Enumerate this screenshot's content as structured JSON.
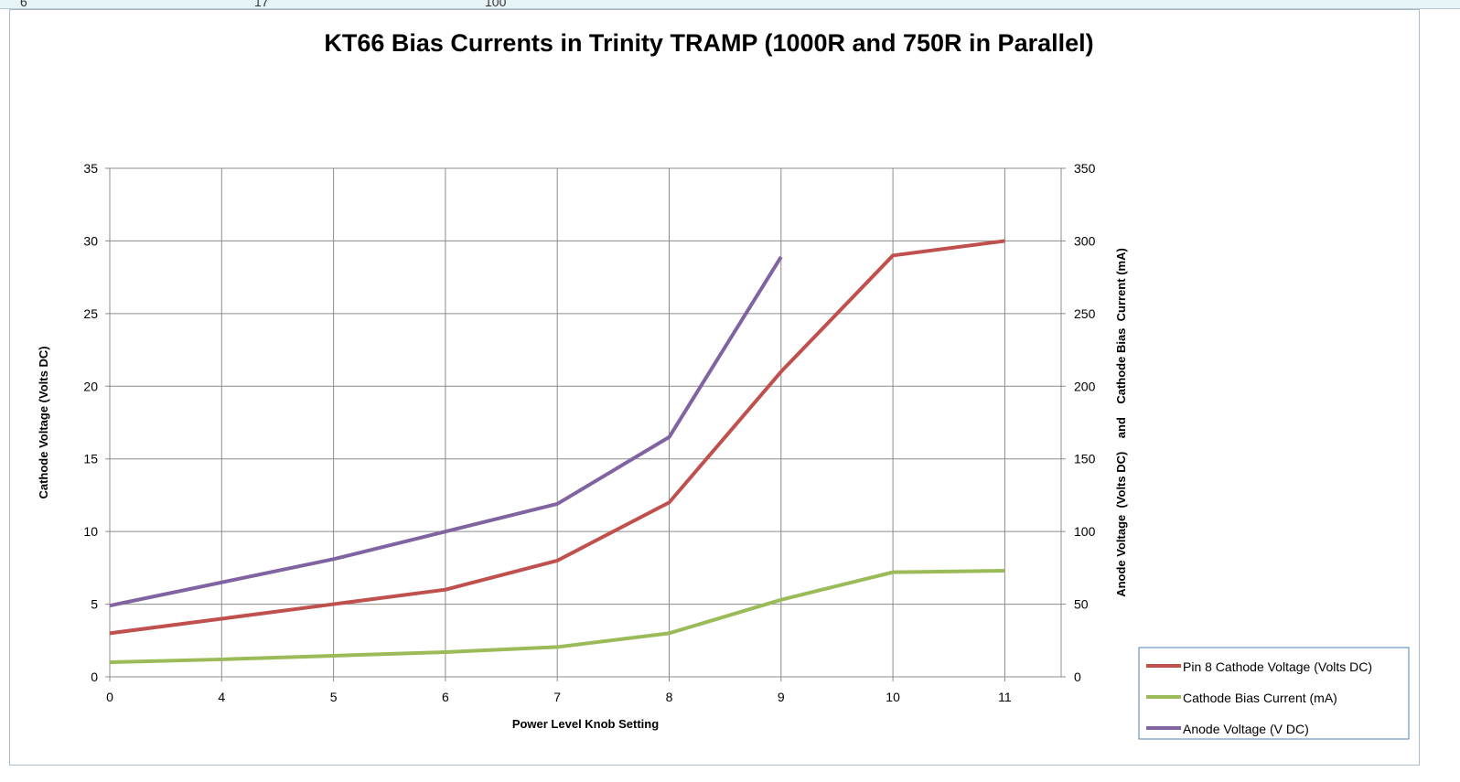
{
  "sheet": {
    "visible_cells": [
      "6",
      "17",
      "100"
    ]
  },
  "chart_data": {
    "type": "line",
    "title": "KT66 Bias Currents in Trinity TRAMP (1000R and 750R in Parallel)",
    "xlabel": "Power Level Knob Setting",
    "ylabel": "Cathode Voltage  (Volts DC)",
    "y2label": "Anode Voltage  (Volts DC)    and    Cathode Bias  Current (mA)",
    "categories": [
      "0",
      "4",
      "5",
      "6",
      "7",
      "8",
      "9",
      "10",
      "11"
    ],
    "ylim": [
      0,
      35
    ],
    "yticks": [
      "0",
      "5",
      "10",
      "15",
      "20",
      "25",
      "30",
      "35"
    ],
    "y2lim": [
      0,
      350
    ],
    "y2ticks": [
      "0",
      "50",
      "100",
      "150",
      "200",
      "250",
      "300",
      "350"
    ],
    "grid": true,
    "legend_position": "bottom-right",
    "series": [
      {
        "name": "Pin 8 Cathode Voltage  (Volts DC)",
        "axis": "left",
        "color": "#c0504d",
        "values": [
          3,
          4,
          5,
          6,
          8,
          12,
          21,
          29,
          30
        ]
      },
      {
        "name": "Cathode Bias Current (mA)",
        "axis": "right",
        "color": "#9bbb59",
        "values": [
          10,
          12,
          14.5,
          17,
          20.5,
          30,
          53,
          72,
          73
        ]
      },
      {
        "name": "Anode Voltage  (V DC)",
        "axis": "right",
        "color": "#8064a2",
        "values": [
          49,
          65,
          81,
          100,
          119,
          165,
          289,
          null,
          null
        ]
      }
    ]
  }
}
